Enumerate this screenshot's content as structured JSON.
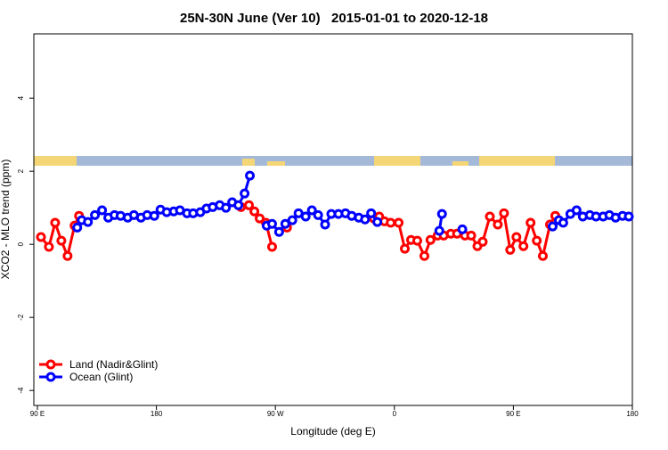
{
  "chart_data": {
    "type": "line",
    "title": "25N-30N June (Ver 10)   2015-01-01 to 2020-12-18",
    "xlabel": "Longitude (deg E)",
    "ylabel": "XCO2 - MLO trend (ppm)",
    "xlim": [
      87.3,
      540
    ],
    "ylim": [
      -4.41,
      5.76
    ],
    "xticks": [
      {
        "value": 90,
        "label": "90 E"
      },
      180,
      {
        "value": 270,
        "label": "90 W"
      },
      {
        "value": 360,
        "label": "0"
      },
      {
        "value": 450,
        "label": "90 E"
      },
      {
        "value": 540,
        "label": "180"
      }
    ],
    "yticks": [
      -4,
      -2,
      0,
      2,
      4
    ],
    "legend": "bottomleft",
    "series": [
      {
        "name": "Land (Nadir&Glint)",
        "color": "#ff0000",
        "x": [
          92.7,
          98.7,
          103.4,
          108.1,
          112.8,
          118.1,
          121.5,
          null,
          244.0,
          250.0,
          254.1,
          258.1,
          262.8,
          267.5,
          null,
          278.8,
          null,
          344.4,
          348.5,
          352.5,
          357.2,
          363.2,
          367.9,
          372.6,
          377.3,
          382.7,
          387.3,
          392.7,
          397.3,
          402.7,
          407.4,
          413.4,
          418.1,
          422.8,
          426.8,
          432.2,
          438.2,
          442.9,
          447.6,
          452.3,
          457.6,
          463.0,
          467.7,
          472.3,
          477.7,
          481.7
        ],
        "values": [
          0.2,
          -0.07,
          0.59,
          0.1,
          -0.32,
          0.51,
          0.78,
          null,
          1.02,
          1.07,
          0.9,
          0.71,
          0.59,
          -0.07,
          null,
          0.46,
          null,
          0.71,
          0.76,
          0.63,
          0.59,
          0.59,
          -0.12,
          0.12,
          0.1,
          -0.32,
          0.12,
          0.24,
          0.24,
          0.29,
          0.29,
          0.24,
          0.24,
          -0.05,
          0.07,
          0.76,
          0.54,
          0.85,
          -0.15,
          0.2,
          -0.05,
          0.59,
          0.1,
          -0.32,
          0.54,
          0.78
        ]
      },
      {
        "name": "Ocean (Glint)",
        "color": "#0000ff",
        "x": [
          120.1,
          123.5,
          128.2,
          133.5,
          138.9,
          143.6,
          148.3,
          152.9,
          158.3,
          163.0,
          168.3,
          173.0,
          178.4,
          183.1,
          187.8,
          193.1,
          197.8,
          203.2,
          207.8,
          213.2,
          217.9,
          222.6,
          227.9,
          232.6,
          237.3,
          242.0,
          246.7,
          250.7,
          null,
          263.4,
          267.5,
          272.8,
          277.5,
          282.8,
          287.5,
          292.9,
          297.6,
          302.3,
          307.6,
          312.3,
          317.7,
          323.0,
          327.7,
          333.1,
          337.8,
          342.4,
          347.1,
          null,
          394.0,
          396.0,
          null,
          411.4,
          null,
          479.7,
          484.4,
          487.7,
          493.1,
          497.8,
          502.5,
          507.8,
          512.5,
          517.9,
          522.6,
          527.3,
          532.6,
          537.3
        ],
        "values": [
          0.46,
          0.66,
          0.61,
          0.8,
          0.93,
          0.73,
          0.8,
          0.78,
          0.73,
          0.8,
          0.73,
          0.8,
          0.78,
          0.95,
          0.88,
          0.9,
          0.93,
          0.85,
          0.85,
          0.88,
          0.98,
          1.02,
          1.07,
          1.0,
          1.15,
          1.07,
          1.39,
          1.88,
          null,
          0.51,
          0.56,
          0.34,
          0.56,
          0.66,
          0.85,
          0.76,
          0.93,
          0.8,
          0.54,
          0.83,
          0.83,
          0.85,
          0.78,
          0.73,
          0.68,
          0.85,
          0.61,
          null,
          0.37,
          0.83,
          null,
          0.41,
          null,
          0.49,
          0.66,
          0.59,
          0.83,
          0.93,
          0.76,
          0.8,
          0.76,
          0.76,
          0.8,
          0.73,
          0.78,
          0.76
        ]
      }
    ]
  }
}
